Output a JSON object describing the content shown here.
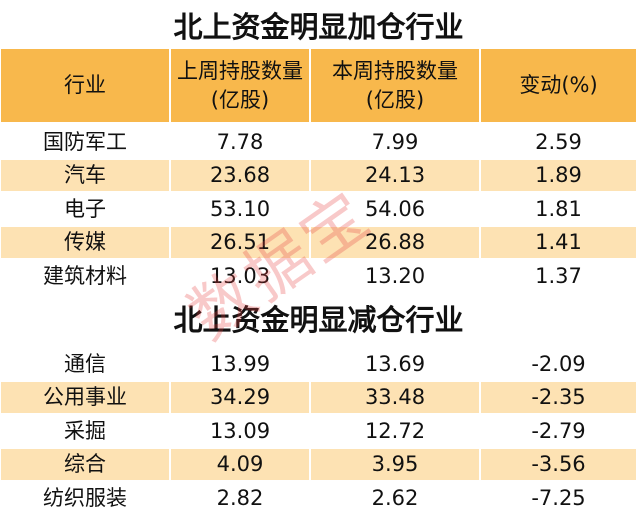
{
  "header": [
    [
      "行业"
    ],
    [
      "上周持股数量",
      "(亿股)"
    ],
    [
      "本周持股数量",
      "(亿股)"
    ],
    [
      "变动(%)"
    ]
  ],
  "sections": [
    {
      "title": "北上资金明显加仓行业",
      "rows": [
        [
          "国防军工",
          "7.78",
          "7.99",
          "2.59"
        ],
        [
          "汽车",
          "23.68",
          "24.13",
          "1.89"
        ],
        [
          "电子",
          "53.10",
          "54.06",
          "1.81"
        ],
        [
          "传媒",
          "26.51",
          "26.88",
          "1.41"
        ],
        [
          "建筑材料",
          "13.03",
          "13.20",
          "1.37"
        ]
      ]
    },
    {
      "title": "北上资金明显减仓行业",
      "rows": [
        [
          "通信",
          "13.99",
          "13.69",
          "-2.09"
        ],
        [
          "公用事业",
          "34.29",
          "33.48",
          "-2.35"
        ],
        [
          "采掘",
          "13.09",
          "12.72",
          "-2.79"
        ],
        [
          "综合",
          "4.09",
          "3.95",
          "-3.56"
        ],
        [
          "纺织服装",
          "2.82",
          "2.62",
          "-7.25"
        ]
      ]
    }
  ],
  "watermark": "数据宝"
}
